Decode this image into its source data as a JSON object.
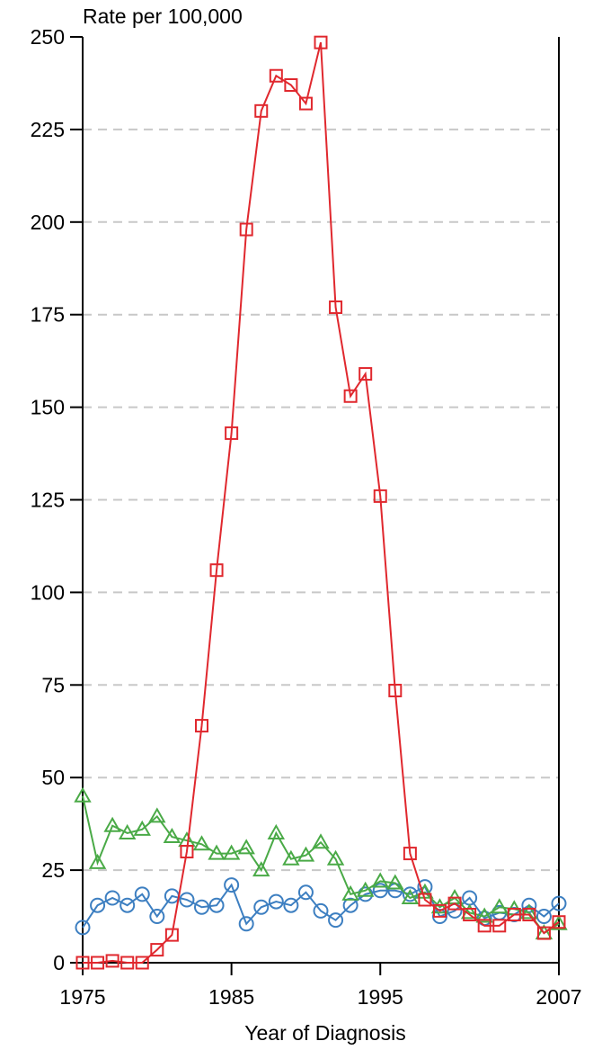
{
  "chart_data": {
    "type": "line",
    "y_label": "Rate per 100,000",
    "x_label": "Year of Diagnosis",
    "x": [
      1975,
      1976,
      1977,
      1978,
      1979,
      1980,
      1981,
      1982,
      1983,
      1984,
      1985,
      1986,
      1987,
      1988,
      1989,
      1990,
      1991,
      1992,
      1993,
      1994,
      1995,
      1996,
      1997,
      1998,
      1999,
      2000,
      2001,
      2002,
      2003,
      2004,
      2005,
      2006,
      2007
    ],
    "xlim": [
      1975,
      2007
    ],
    "xticks": [
      1975,
      1985,
      1995,
      2007
    ],
    "ylim": [
      0,
      250
    ],
    "yticks": [
      0,
      25,
      50,
      75,
      100,
      125,
      150,
      175,
      200,
      225,
      250
    ],
    "grid": true,
    "series": [
      {
        "color": "#3d7fc1",
        "marker": "circle",
        "values": [
          9.5,
          15.5,
          17.5,
          15.5,
          18.5,
          12.5,
          18,
          17,
          15,
          15.5,
          21,
          10.5,
          15,
          16.5,
          15.5,
          19,
          14,
          11.5,
          15.5,
          18.5,
          19.5,
          19.5,
          18.5,
          20.5,
          12.5,
          14,
          17.5,
          12,
          13.5,
          13,
          15.5,
          12.5,
          16
        ]
      },
      {
        "color": "#4aaa47",
        "marker": "triangle",
        "values": [
          45,
          27,
          37,
          35,
          36,
          39.5,
          34,
          33,
          32,
          29.5,
          29.5,
          31,
          25,
          35,
          28,
          29,
          32.5,
          28,
          18.5,
          19.5,
          22,
          21.5,
          17.5,
          19,
          15,
          17.5,
          13.5,
          12.5,
          15,
          14.5,
          13.5,
          8,
          10.5
        ]
      },
      {
        "color": "#e0282e",
        "marker": "square",
        "values": [
          0,
          0,
          0.5,
          0,
          0,
          3.5,
          7.5,
          30,
          64,
          106,
          143,
          198,
          230,
          239.5,
          237,
          232,
          248.5,
          177,
          153,
          159,
          126,
          73.5,
          29.5,
          17,
          14,
          16,
          13,
          10,
          10,
          13,
          13,
          8,
          11
        ]
      }
    ]
  }
}
